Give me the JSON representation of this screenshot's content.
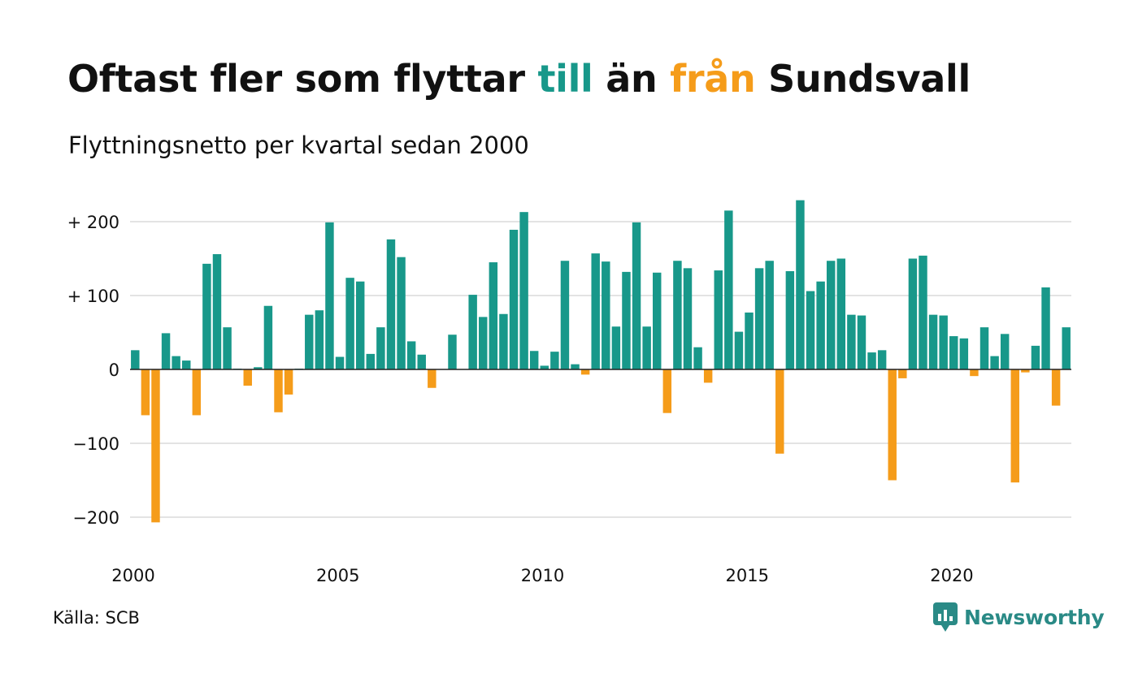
{
  "title": {
    "part1": "Oftast fler som flyttar ",
    "till": "till",
    "part2": " än ",
    "fran": "från",
    "part3": " Sundsvall"
  },
  "subtitle": "Flyttningsnetto per kvartal sedan 2000",
  "source": "Källa: SCB",
  "brand": {
    "name": "Newsworthy",
    "icon": "chart-bubble-icon"
  },
  "colors": {
    "positive": "#18988a",
    "negative": "#f59c1a",
    "grid": "#e3e3e3",
    "baseline": "#222222"
  },
  "chart_data": {
    "type": "bar",
    "title": "Oftast fler som flyttar till än från Sundsvall",
    "subtitle": "Flyttningsnetto per kvartal sedan 2000",
    "xlabel": "",
    "ylabel": "",
    "ylim": [
      -230,
      230
    ],
    "x_start_year": 2000,
    "periods_per_year": 4,
    "x_ticks": [
      {
        "value": 2000,
        "label": "2000"
      },
      {
        "value": 2005,
        "label": "2005"
      },
      {
        "value": 2010,
        "label": "2010"
      },
      {
        "value": 2015,
        "label": "2015"
      },
      {
        "value": 2020,
        "label": "2020"
      }
    ],
    "y_ticks": [
      {
        "value": 200,
        "label": "+ 200"
      },
      {
        "value": 100,
        "label": "+ 100"
      },
      {
        "value": 0,
        "label": "0"
      },
      {
        "value": -100,
        "label": "−100"
      },
      {
        "value": -200,
        "label": "−200"
      }
    ],
    "grid": true,
    "legend": "none",
    "values": [
      26,
      -62,
      -207,
      49,
      18,
      12,
      -62,
      143,
      156,
      57,
      1,
      -22,
      3,
      86,
      -58,
      -34,
      1,
      74,
      80,
      199,
      17,
      124,
      119,
      21,
      57,
      176,
      152,
      38,
      20,
      -25,
      0,
      47,
      0,
      101,
      71,
      145,
      75,
      189,
      213,
      25,
      5,
      24,
      147,
      7,
      -7,
      157,
      146,
      58,
      132,
      199,
      58,
      131,
      -59,
      147,
      137,
      30,
      -18,
      134,
      215,
      51,
      77,
      137,
      147,
      -114,
      133,
      229,
      106,
      119,
      147,
      150,
      74,
      73,
      23,
      26,
      -150,
      -12,
      150,
      154,
      74,
      73,
      45,
      42,
      -9,
      57,
      18,
      48,
      -153,
      -4,
      32,
      111,
      -49,
      57
    ]
  }
}
